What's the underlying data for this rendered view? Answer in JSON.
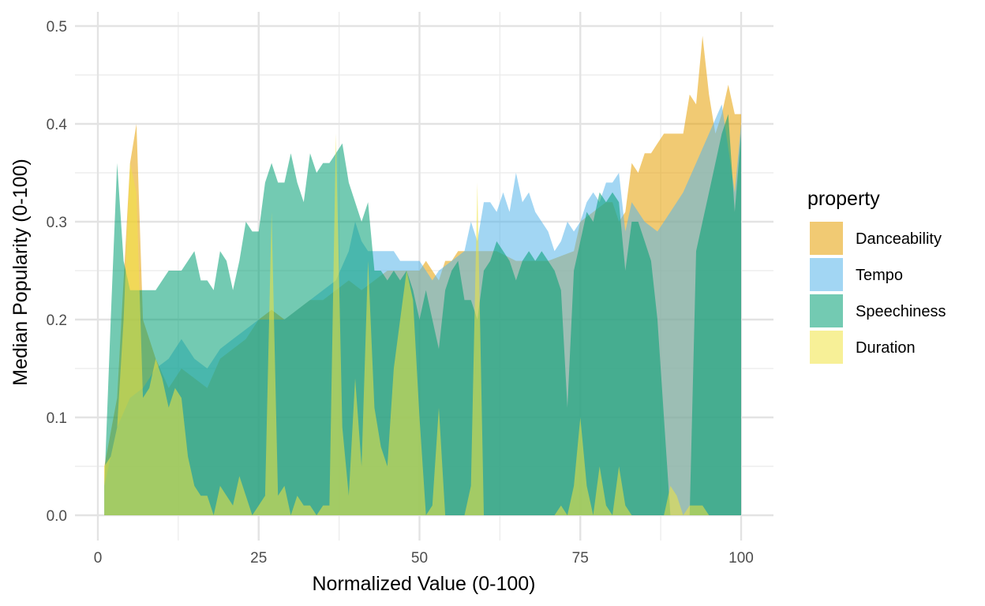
{
  "chart_data": {
    "type": "area",
    "xlabel": "Normalized Value (0-100)",
    "ylabel": "Median Popularity (0-100)",
    "xlim": [
      0,
      100
    ],
    "ylim": [
      0,
      0.5
    ],
    "x_ticks": [
      "0",
      "25",
      "50",
      "75",
      "100"
    ],
    "y_ticks": [
      "0.0",
      "0.1",
      "0.2",
      "0.3",
      "0.4",
      "0.5"
    ],
    "grid": true,
    "legend": {
      "title": "property",
      "position": "right"
    },
    "series": [
      {
        "name": "Danceability",
        "color": "#E69F00",
        "x": [
          1,
          3,
          5,
          6,
          7,
          9,
          11,
          13,
          15,
          17,
          19,
          21,
          23,
          25,
          27,
          29,
          31,
          33,
          35,
          37,
          39,
          41,
          43,
          45,
          47,
          48,
          50,
          51,
          52,
          53,
          54,
          55,
          56,
          57,
          58,
          60,
          62,
          65,
          70,
          74,
          75,
          77,
          79,
          80,
          81,
          82,
          83,
          84,
          85,
          86,
          87,
          88,
          89,
          90,
          91,
          92,
          93,
          94,
          95,
          96,
          97,
          98,
          99,
          100
        ],
        "y": [
          0.05,
          0.12,
          0.36,
          0.4,
          0.2,
          0.16,
          0.13,
          0.15,
          0.14,
          0.13,
          0.16,
          0.17,
          0.18,
          0.2,
          0.21,
          0.2,
          0.21,
          0.22,
          0.22,
          0.23,
          0.24,
          0.23,
          0.24,
          0.25,
          0.25,
          0.25,
          0.25,
          0.26,
          0.25,
          0.24,
          0.26,
          0.26,
          0.27,
          0.27,
          0.27,
          0.27,
          0.27,
          0.26,
          0.26,
          0.27,
          0.3,
          0.31,
          0.32,
          0.32,
          0.3,
          0.31,
          0.36,
          0.35,
          0.37,
          0.37,
          0.38,
          0.39,
          0.39,
          0.39,
          0.39,
          0.43,
          0.42,
          0.49,
          0.43,
          0.39,
          0.41,
          0.44,
          0.41,
          0.41
        ]
      },
      {
        "name": "Tempo",
        "color": "#56B4E9",
        "x": [
          1,
          3,
          5,
          7,
          9,
          11,
          13,
          15,
          17,
          19,
          21,
          23,
          25,
          27,
          29,
          31,
          33,
          35,
          37,
          39,
          40,
          41,
          42,
          43,
          44,
          45,
          46,
          47,
          48,
          49,
          50,
          51,
          52,
          53,
          55,
          57,
          58,
          59,
          60,
          61,
          62,
          63,
          64,
          65,
          66,
          67,
          68,
          70,
          71,
          72,
          73,
          74,
          75,
          76,
          77,
          78,
          79,
          80,
          81,
          82,
          83,
          85,
          87,
          89,
          91,
          93,
          95,
          97,
          99,
          100
        ],
        "y": [
          0.03,
          0.09,
          0.12,
          0.13,
          0.15,
          0.16,
          0.18,
          0.16,
          0.15,
          0.17,
          0.18,
          0.19,
          0.2,
          0.2,
          0.2,
          0.21,
          0.22,
          0.23,
          0.24,
          0.27,
          0.3,
          0.28,
          0.27,
          0.27,
          0.27,
          0.27,
          0.27,
          0.26,
          0.26,
          0.26,
          0.26,
          0.25,
          0.24,
          0.25,
          0.26,
          0.27,
          0.3,
          0.28,
          0.32,
          0.32,
          0.31,
          0.33,
          0.31,
          0.35,
          0.32,
          0.33,
          0.31,
          0.29,
          0.27,
          0.28,
          0.3,
          0.29,
          0.3,
          0.32,
          0.33,
          0.32,
          0.34,
          0.34,
          0.35,
          0.29,
          0.32,
          0.3,
          0.29,
          0.31,
          0.33,
          0.36,
          0.39,
          0.42,
          0.33,
          0.4
        ]
      },
      {
        "name": "Speechiness",
        "color": "#009E73",
        "x": [
          1,
          2,
          3,
          4,
          5,
          6,
          7,
          8,
          9,
          10,
          11,
          12,
          13,
          14,
          15,
          16,
          17,
          18,
          19,
          20,
          21,
          22,
          23,
          24,
          25,
          26,
          27,
          28,
          29,
          30,
          31,
          32,
          33,
          34,
          35,
          36,
          37,
          38,
          39,
          40,
          41,
          42,
          43,
          44,
          45,
          46,
          47,
          48,
          49,
          50,
          51,
          52,
          53,
          54,
          55,
          56,
          57,
          58,
          59,
          60,
          61,
          62,
          63,
          64,
          65,
          66,
          67,
          68,
          69,
          70,
          71,
          72,
          73,
          74,
          75,
          76,
          77,
          78,
          79,
          80,
          81,
          82,
          83,
          84,
          85,
          86,
          87,
          88,
          89,
          90,
          91,
          92,
          93,
          94,
          95,
          96,
          97,
          98,
          99,
          100
        ],
        "y": [
          0.03,
          0.2,
          0.36,
          0.26,
          0.23,
          0.23,
          0.23,
          0.23,
          0.23,
          0.24,
          0.25,
          0.25,
          0.25,
          0.26,
          0.27,
          0.24,
          0.24,
          0.23,
          0.27,
          0.26,
          0.23,
          0.26,
          0.3,
          0.29,
          0.29,
          0.34,
          0.36,
          0.34,
          0.34,
          0.37,
          0.34,
          0.32,
          0.37,
          0.35,
          0.36,
          0.36,
          0.37,
          0.38,
          0.34,
          0.32,
          0.3,
          0.32,
          0.25,
          0.25,
          0.24,
          0.25,
          0.24,
          0.25,
          0.23,
          0.2,
          0.23,
          0.2,
          0.17,
          0.23,
          0.25,
          0.26,
          0.22,
          0.22,
          0.2,
          0.25,
          0.26,
          0.28,
          0.27,
          0.26,
          0.24,
          0.26,
          0.27,
          0.26,
          0.27,
          0.26,
          0.25,
          0.23,
          0.11,
          0.25,
          0.28,
          0.31,
          0.3,
          0.33,
          0.32,
          0.33,
          0.32,
          0.25,
          0.3,
          0.3,
          0.28,
          0.26,
          0.2,
          0.1,
          0.0,
          0.0,
          0.0,
          0.0,
          0.27,
          0.3,
          0.33,
          0.36,
          0.39,
          0.41,
          0.31,
          0.39
        ]
      },
      {
        "name": "Duration",
        "color": "#F0E442",
        "x": [
          1,
          2,
          3,
          4,
          5,
          6,
          7,
          8,
          9,
          10,
          11,
          12,
          13,
          14,
          15,
          16,
          17,
          18,
          19,
          20,
          21,
          22,
          23,
          24,
          25,
          26,
          27,
          28,
          29,
          30,
          31,
          32,
          33,
          34,
          35,
          36,
          37,
          38,
          39,
          40,
          41,
          42,
          43,
          44,
          45,
          46,
          47,
          48,
          49,
          50,
          51,
          52,
          53,
          54,
          55,
          56,
          57,
          58,
          59,
          60,
          61,
          62,
          63,
          64,
          65,
          66,
          67,
          68,
          69,
          70,
          71,
          72,
          73,
          74,
          75,
          76,
          77,
          78,
          79,
          80,
          81,
          82,
          83,
          84,
          85,
          86,
          87,
          88,
          89,
          90,
          91,
          92,
          93,
          94,
          95,
          96,
          97,
          98,
          99,
          100
        ],
        "y": [
          0.05,
          0.06,
          0.09,
          0.2,
          0.36,
          0.33,
          0.12,
          0.13,
          0.16,
          0.14,
          0.11,
          0.13,
          0.12,
          0.06,
          0.03,
          0.02,
          0.02,
          0.0,
          0.03,
          0.02,
          0.01,
          0.04,
          0.02,
          0.0,
          0.01,
          0.02,
          0.31,
          0.02,
          0.03,
          0.0,
          0.02,
          0.01,
          0.01,
          0.0,
          0.01,
          0.01,
          0.39,
          0.09,
          0.02,
          0.14,
          0.05,
          0.26,
          0.11,
          0.07,
          0.05,
          0.15,
          0.2,
          0.25,
          0.22,
          0.1,
          0.0,
          0.01,
          0.11,
          0.0,
          0.0,
          0.0,
          0.0,
          0.03,
          0.34,
          0.0,
          0.0,
          0.0,
          0.0,
          0.0,
          0.0,
          0.0,
          0.0,
          0.0,
          0.0,
          0.0,
          0.0,
          0.01,
          0.0,
          0.03,
          0.1,
          0.03,
          0.0,
          0.05,
          0.01,
          0.0,
          0.05,
          0.01,
          0.0,
          0.0,
          0.0,
          0.0,
          0.0,
          0.0,
          0.03,
          0.02,
          0.0,
          0.01,
          0.01,
          0.01,
          0.0,
          0.0,
          0.0,
          0.0,
          0.0,
          0.0
        ]
      }
    ]
  }
}
